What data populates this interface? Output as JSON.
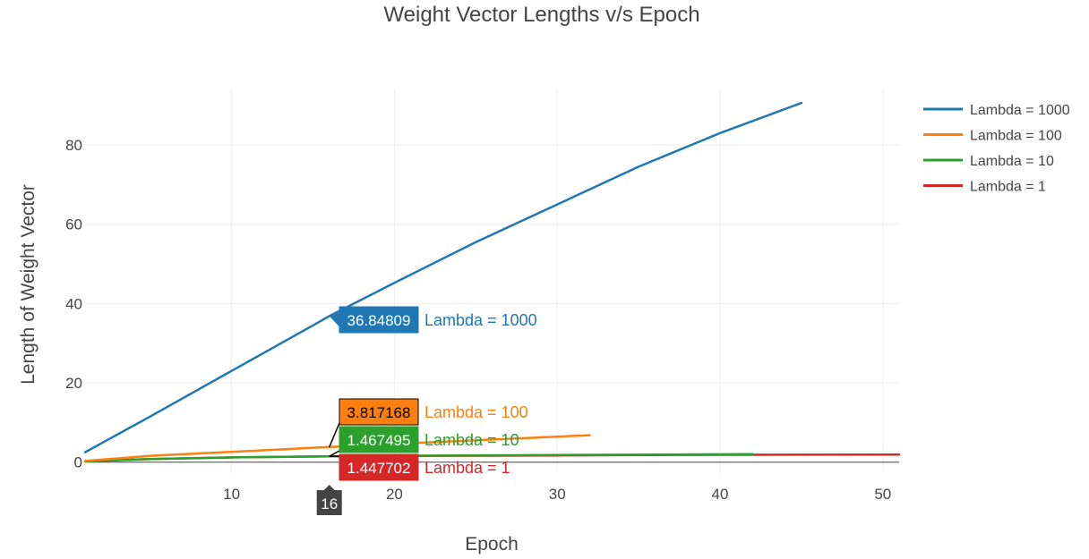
{
  "chart_data": {
    "type": "line",
    "title": "Weight Vector Lengths v/s Epoch",
    "xlabel": "Epoch",
    "ylabel": "Length of Weight Vector",
    "xlim": [
      1,
      51
    ],
    "ylim": [
      -3,
      94
    ],
    "xticks": [
      10,
      20,
      30,
      40,
      50
    ],
    "yticks": [
      0,
      20,
      40,
      60,
      80
    ],
    "grid": true,
    "legend_position": "top-right",
    "series": [
      {
        "name": "Lambda = 1000",
        "color": "#1f77b4",
        "x": [
          1,
          5,
          10,
          15,
          16,
          20,
          25,
          30,
          35,
          40,
          45
        ],
        "y": [
          2.5,
          11.5,
          23.0,
          34.5,
          36.84809,
          45.2,
          55.5,
          65.0,
          74.5,
          83.0,
          90.6
        ]
      },
      {
        "name": "Lambda = 100",
        "color": "#ff7f0e",
        "x": [
          1,
          5,
          10,
          16,
          20,
          25,
          32
        ],
        "y": [
          0.3,
          1.6,
          2.6,
          3.817168,
          4.6,
          5.5,
          6.8
        ]
      },
      {
        "name": "Lambda = 10",
        "color": "#2ca02c",
        "x": [
          1,
          5,
          10,
          16,
          20,
          30,
          42
        ],
        "y": [
          0.2,
          0.8,
          1.2,
          1.467495,
          1.6,
          1.8,
          2.0
        ]
      },
      {
        "name": "Lambda = 1",
        "color": "#d62728",
        "x": [
          1,
          5,
          10,
          16,
          20,
          30,
          40,
          51
        ],
        "y": [
          0.2,
          0.8,
          1.2,
          1.447702,
          1.55,
          1.7,
          1.85,
          1.9
        ]
      }
    ],
    "hover": {
      "x_label": "16",
      "x": 16,
      "items": [
        {
          "value": "36.84809",
          "name": "Lambda = 1000",
          "color": "#1f77b4",
          "y": 36.84809,
          "text_color": "#ffffff"
        },
        {
          "value": "3.817168",
          "name": "Lambda = 100",
          "color": "#ff7f0e",
          "y": 3.817168,
          "text_color": "#000000"
        },
        {
          "value": "1.467495",
          "name": "Lambda = 10",
          "color": "#2ca02c",
          "y": 1.467495,
          "text_color": "#ffffff"
        },
        {
          "value": "1.447702",
          "name": "Lambda = 1",
          "color": "#d62728",
          "y": 1.447702,
          "text_color": "#ffffff"
        }
      ]
    }
  }
}
